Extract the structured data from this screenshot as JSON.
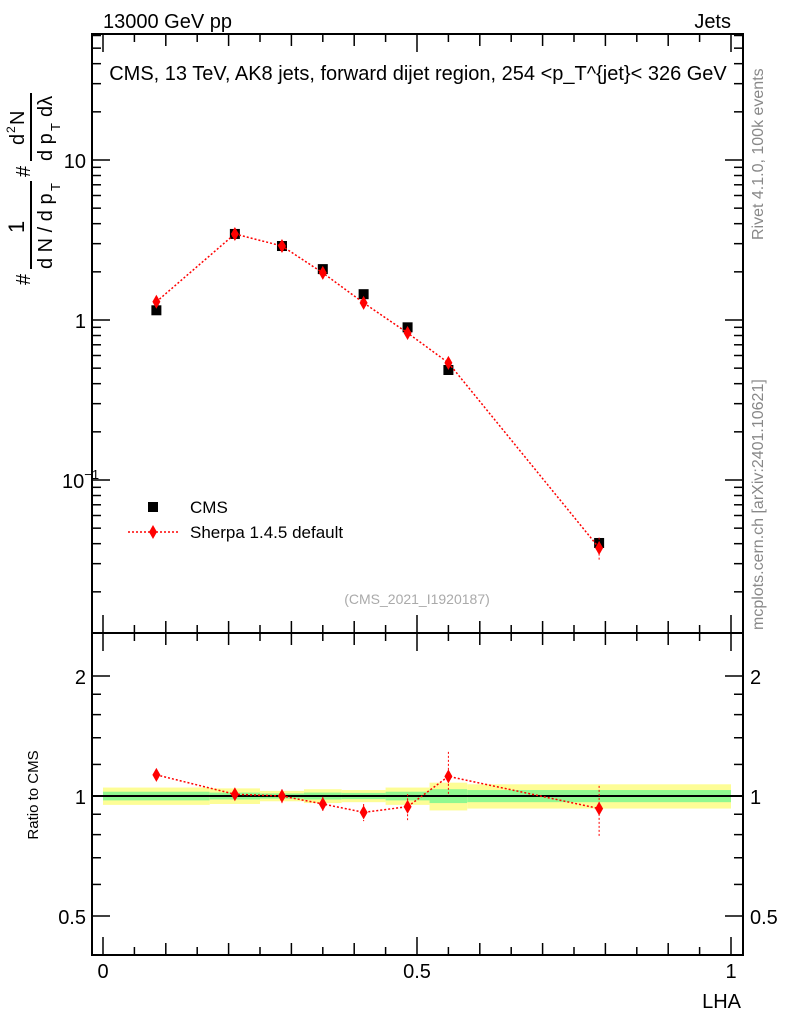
{
  "header": {
    "left": "13000 GeV pp",
    "right": "Jets"
  },
  "side": {
    "rivet": "Rivet 4.1.0,  100k events",
    "mcplots": "mcplots.cern.ch [arXiv:2401.10621]"
  },
  "watermark": "(CMS_2021_I1920187)",
  "colors": {
    "data": "#000000",
    "mc": "#ff0000",
    "band_inner": "#90f890",
    "band_outer": "#fdfd96",
    "side_text": "#888888"
  },
  "chart_data": [
    {
      "type": "scatter",
      "title": "CMS, 13 TeV, AK8 jets, forward dijet region, 254 <p_T^{jet}< 326 GeV",
      "title_parts": {
        "main": "CMS, 13 TeV, AK8 jets, forward dijet region, 254 <p",
        "sup": "{jet}",
        "sub": "T",
        "tail": "}< 326 GeV"
      },
      "ylabel_parts": {
        "hash": "#",
        "one": "1",
        "den1": "d N / d p",
        "T": "T",
        "hash2": "#",
        "num": "d",
        "two": "2",
        "N": "N",
        "den2": "d p",
        "dl": "dλ"
      },
      "yscale": "log",
      "ylim": [
        0.011,
        61.5
      ],
      "xlim": [
        -0.017,
        1.02
      ],
      "yticks": [
        {
          "v": 10,
          "label": "10"
        },
        {
          "v": 1,
          "label": "1"
        },
        {
          "v": 0.1,
          "label": "10",
          "sup": "−1"
        }
      ],
      "legend": {
        "placement": "bottom-left",
        "entries": [
          "CMS",
          "Sherpa 1.4.5 default"
        ]
      },
      "bins": [
        [
          0,
          0.17
        ],
        [
          0.17,
          0.25
        ],
        [
          0.25,
          0.32
        ],
        [
          0.32,
          0.38
        ],
        [
          0.38,
          0.45
        ],
        [
          0.45,
          0.52
        ],
        [
          0.52,
          0.58
        ],
        [
          0.58,
          1.0
        ]
      ],
      "x": [
        0.085,
        0.21,
        0.285,
        0.35,
        0.415,
        0.485,
        0.55,
        0.79
      ],
      "series": [
        {
          "name": "CMS",
          "marker": "square",
          "values": [
            1.15,
            3.45,
            2.9,
            2.08,
            1.45,
            0.9,
            0.487,
            0.0404
          ]
        },
        {
          "name": "Sherpa 1.4.5 default",
          "marker": "diamond",
          "values": [
            1.3,
            3.45,
            2.9,
            1.97,
            1.28,
            0.83,
            0.54,
            0.0376
          ],
          "err": [
            0.05,
            0.1,
            0.08,
            0.07,
            0.06,
            0.05,
            0.04,
            0.006
          ]
        }
      ]
    },
    {
      "type": "scatter",
      "ylabel": "Ratio to CMS",
      "xlabel": "LHA",
      "yscale": "log2",
      "ylim": [
        0.4,
        2.56
      ],
      "xlim": [
        -0.017,
        1.02
      ],
      "yticks": [
        {
          "v": 2,
          "label": "2"
        },
        {
          "v": 1,
          "label": "1"
        },
        {
          "v": 0.5,
          "label": "0.5"
        }
      ],
      "xticks": [
        {
          "v": 0,
          "label": "0"
        },
        {
          "v": 0.5,
          "label": "0.5"
        },
        {
          "v": 1,
          "label": "1"
        }
      ],
      "band_inner": [
        0.025,
        0.02,
        0.015,
        0.02,
        0.018,
        0.025,
        0.04,
        0.035
      ],
      "band_outer": [
        0.05,
        0.045,
        0.03,
        0.04,
        0.035,
        0.05,
        0.08,
        0.07
      ],
      "ratio": [
        1.13,
        1.01,
        1.0,
        0.955,
        0.91,
        0.94,
        1.12,
        0.93
      ],
      "ratio_err_lo": [
        0.04,
        0.035,
        0.04,
        0.04,
        0.045,
        0.07,
        0.12,
        0.14
      ],
      "ratio_err_hi": [
        0.04,
        0.035,
        0.04,
        0.04,
        0.045,
        0.07,
        0.17,
        0.13
      ]
    }
  ]
}
